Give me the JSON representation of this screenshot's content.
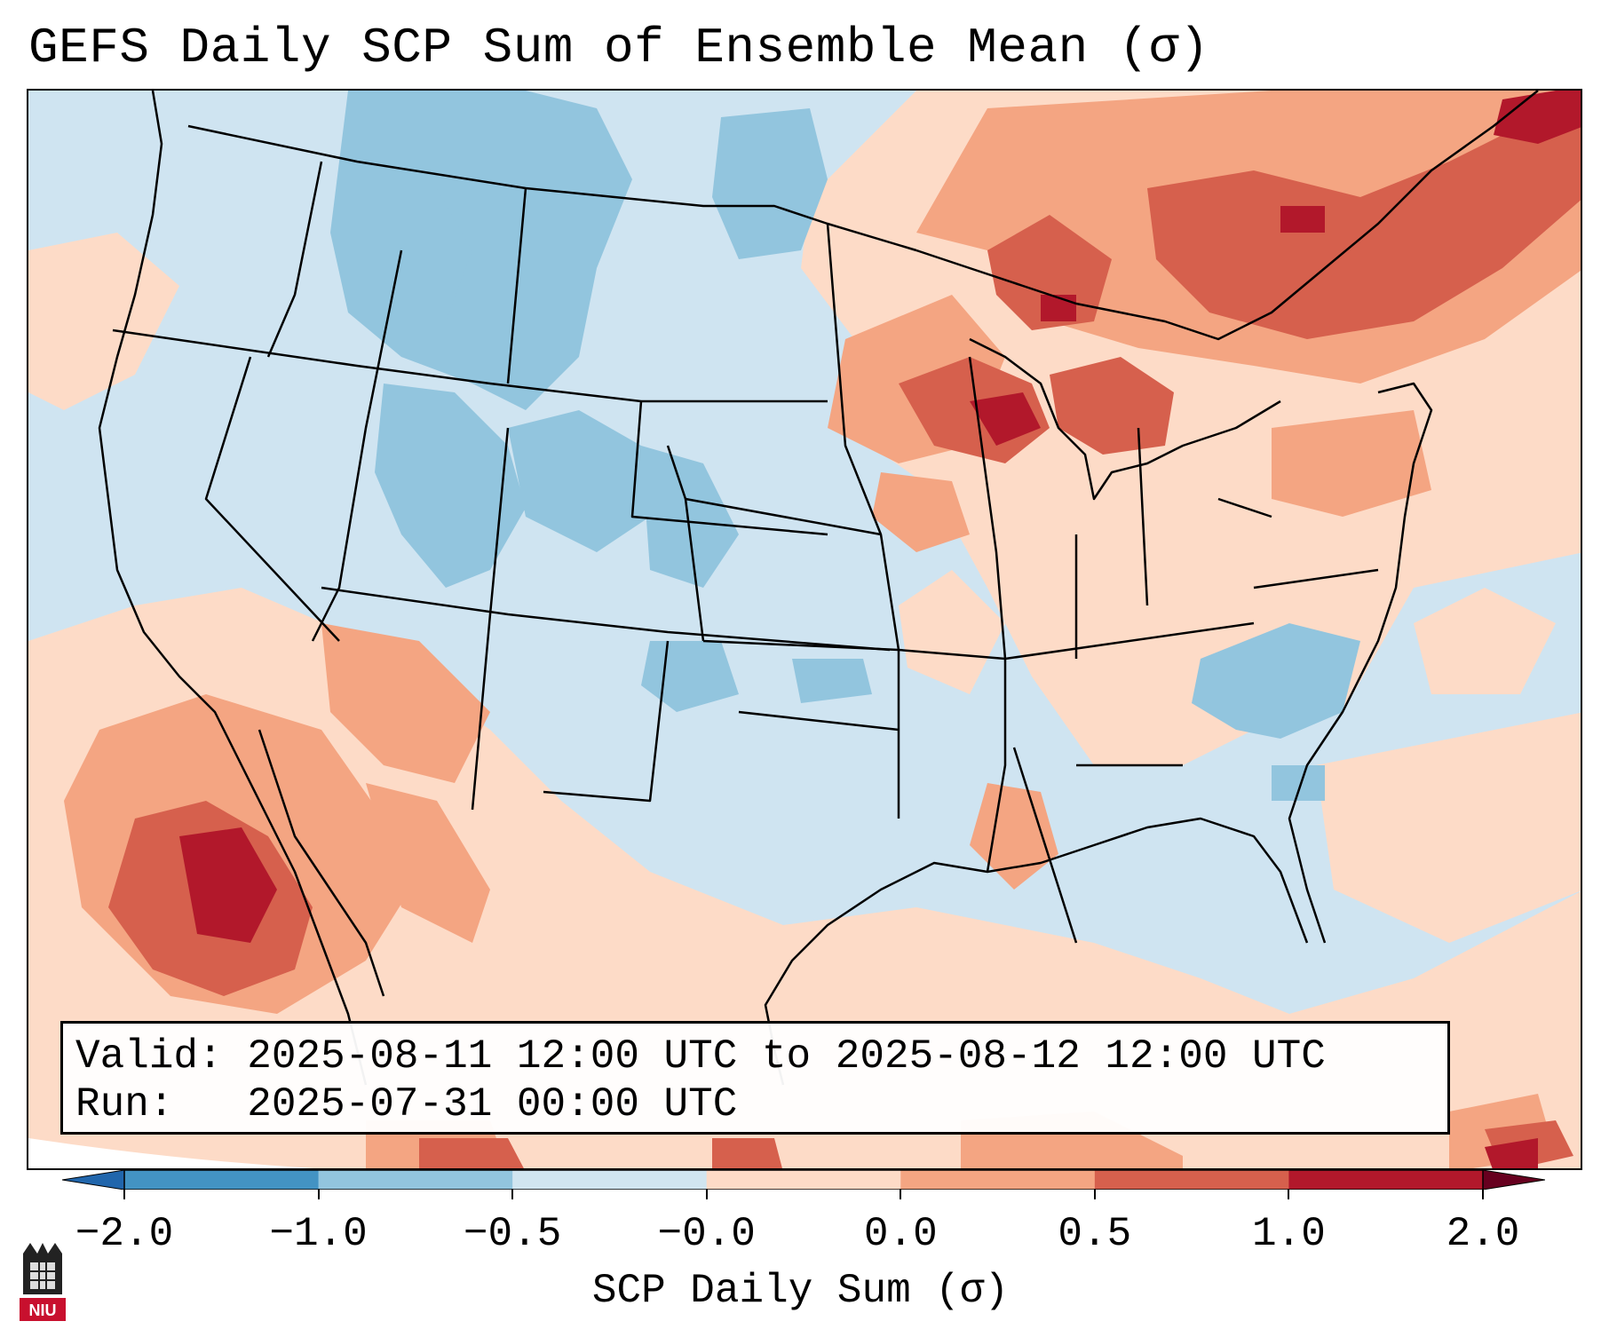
{
  "title": "GEFS Daily SCP Sum of Ensemble Mean (σ)",
  "info": {
    "valid_label": "Valid:",
    "valid_value": "2025-08-11 12:00 UTC to 2025-08-12 12:00 UTC",
    "run_label": "Run:",
    "run_value": "2025-07-31 00:00 UTC"
  },
  "colorbar": {
    "label": "SCP Daily Sum (σ)",
    "ticks": [
      "−2.0",
      "−1.0",
      "−0.5",
      "−0.0",
      "0.0",
      "0.5",
      "1.0",
      "2.0"
    ],
    "colors": [
      "#4393c3",
      "#92c5de",
      "#d1e5f0",
      "#f7f7f7",
      "#fddbc7",
      "#f4a582",
      "#d6604d",
      "#b2182b"
    ]
  },
  "logo": {
    "text": "NIU",
    "color": "#c8102e"
  },
  "map": {
    "ocean_color": "#cfe4f1",
    "regions": [
      {
        "name": "northern-plains-rockies",
        "level": "-1.0",
        "color": "#92c5de"
      },
      {
        "name": "southwest-mexico",
        "level": "1.0",
        "color": "#d6604d"
      },
      {
        "name": "great-lakes-northeast",
        "level": "1.0",
        "color": "#d6604d"
      },
      {
        "name": "southeast-coastal",
        "level": "-1.0",
        "color": "#92c5de"
      },
      {
        "name": "gulf-coast",
        "level": "0.5",
        "color": "#f4a582"
      }
    ]
  }
}
